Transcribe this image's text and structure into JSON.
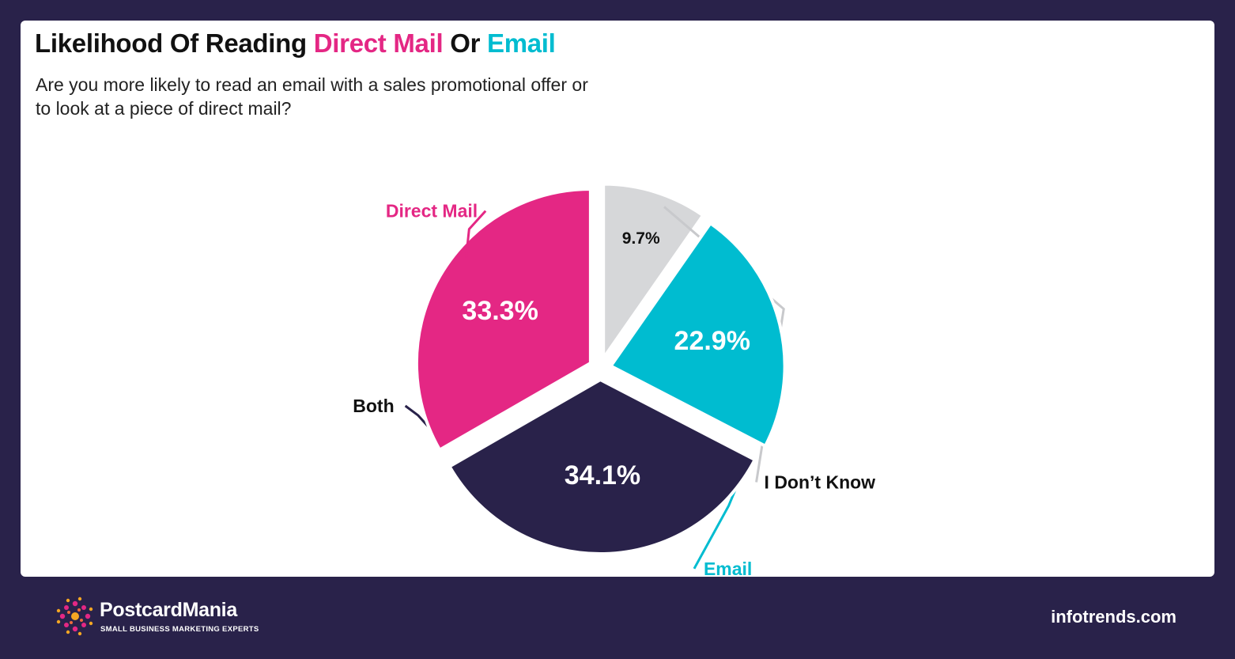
{
  "title": {
    "part1": "Likelihood Of Reading ",
    "part2": "Direct Mail",
    "part3": " Or ",
    "part4": "Email"
  },
  "subtitle": "Are you more likely to read an email with a sales promotional offer or to look at a piece of direct mail?",
  "chart_data": {
    "type": "pie",
    "slices": [
      {
        "label": "I Don’t Know",
        "value": 9.7,
        "value_label": "9.7%",
        "color": "#d6d7d9",
        "label_color": "#111111",
        "value_color": "#111111"
      },
      {
        "label": "Email",
        "value": 22.9,
        "value_label": "22.9%",
        "color": "#00bcd0",
        "label_color": "#00bcd0",
        "value_color": "#ffffff"
      },
      {
        "label": "Both",
        "value": 34.1,
        "value_label": "34.1%",
        "color": "#29224a",
        "label_color": "#111111",
        "value_color": "#ffffff"
      },
      {
        "label": "Direct Mail",
        "value": 33.3,
        "value_label": "33.3%",
        "color": "#e42784",
        "label_color": "#e42784",
        "value_color": "#ffffff"
      }
    ]
  },
  "footer": {
    "brand_name": "PostcardMania",
    "brand_tagline": "SMALL BUSINESS MARKETING EXPERTS",
    "source": "infotrends.com"
  },
  "colors": {
    "background": "#29224a",
    "card": "#ffffff",
    "accent_pink": "#e42784",
    "accent_cyan": "#00bcd0"
  }
}
